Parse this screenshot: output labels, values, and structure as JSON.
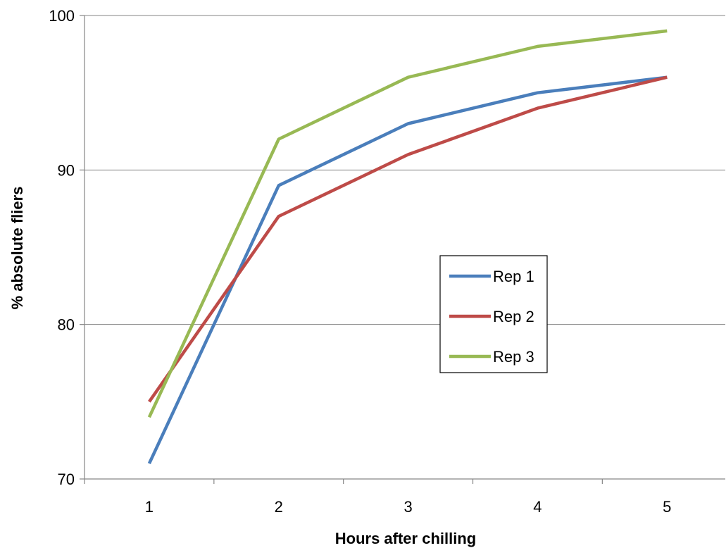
{
  "chart_data": {
    "type": "line",
    "xlabel": "Hours after chilling",
    "ylabel": "% absolute fliers",
    "x": [
      1,
      2,
      3,
      4,
      5
    ],
    "ylim": [
      70,
      100
    ],
    "yticks": [
      70,
      80,
      90,
      100
    ],
    "grid": true,
    "legend_position": "center-right",
    "series": [
      {
        "name": "Rep 1",
        "color": "#4A7EBB",
        "values": [
          71,
          89,
          93,
          95,
          96
        ]
      },
      {
        "name": "Rep 2",
        "color": "#BE4B48",
        "values": [
          75,
          87,
          91,
          94,
          96
        ]
      },
      {
        "name": "Rep 3",
        "color": "#98B954",
        "values": [
          74,
          92,
          96,
          98,
          99
        ]
      }
    ]
  }
}
